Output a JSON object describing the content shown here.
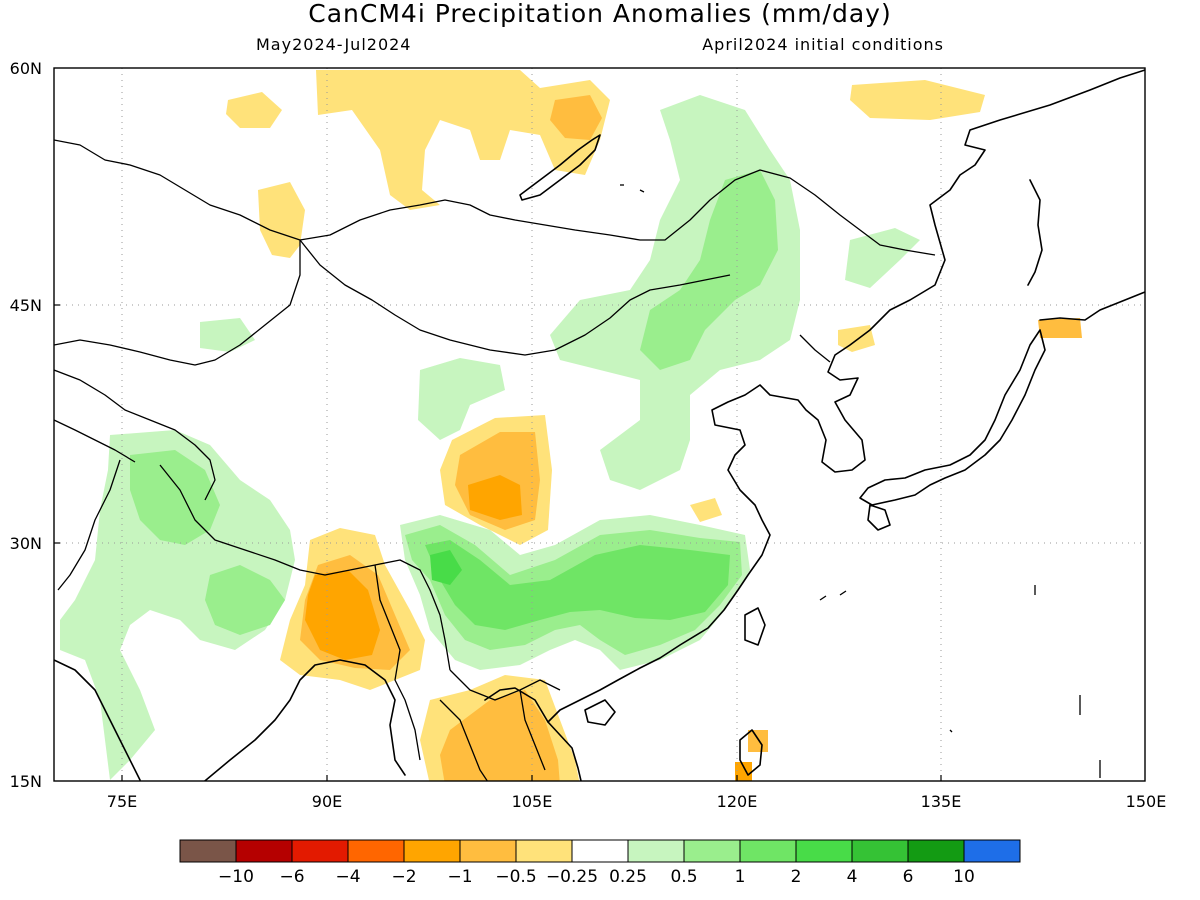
{
  "header": {
    "title": "CanCM4i Precipitation Anomalies (mm/day)",
    "period": "May2024-Jul2024",
    "init": "April2024 initial conditions"
  },
  "axes": {
    "lat_labels": [
      "60N",
      "45N",
      "30N",
      "15N"
    ],
    "lon_labels": [
      "75E",
      "90E",
      "105E",
      "120E",
      "135E",
      "150E"
    ]
  },
  "colorbar": {
    "labels": [
      "-10",
      "-6",
      "-4",
      "-2",
      "-1",
      "-0.5",
      "-0.25",
      "0.25",
      "0.5",
      "1",
      "2",
      "4",
      "6",
      "10"
    ],
    "colors": [
      "#7a5548",
      "#b50000",
      "#e31a00",
      "#ff6600",
      "#ffa500",
      "#ffbd3f",
      "#ffe27a",
      "#ffffff",
      "#c7f5bf",
      "#9aee8d",
      "#6fe565",
      "#48dc48",
      "#35c235",
      "#139b13",
      "#1e6ee8"
    ]
  }
}
